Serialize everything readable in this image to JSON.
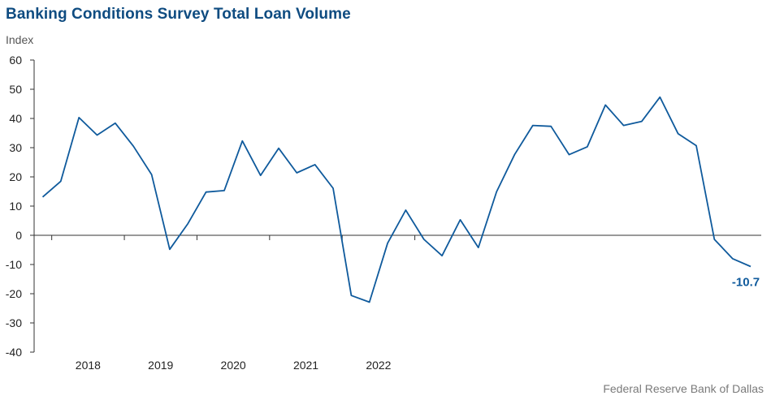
{
  "chart_data": {
    "type": "line",
    "title": "Banking Conditions Survey Total Loan Volume",
    "ylabel": "Index",
    "xlabel": "",
    "ylim": [
      -40,
      60
    ],
    "yticks": [
      60,
      50,
      40,
      30,
      20,
      10,
      0,
      -10,
      -20,
      -30,
      -40
    ],
    "xticks": [
      "2018",
      "2019",
      "2020",
      "2021",
      "2022"
    ],
    "grid": false,
    "line_color": "#0f5a9c",
    "series": [
      {
        "values": [
          13.1,
          18.5,
          40.3,
          34.3,
          38.4,
          30.5,
          20.8,
          -4.8,
          4.0,
          14.8,
          15.3,
          32.3,
          20.5,
          29.8,
          21.4,
          24.2,
          16.1,
          -20.6,
          -22.9,
          -2.7,
          8.6,
          -1.4,
          -7.0,
          5.3,
          -4.2,
          14.9,
          27.7,
          37.6,
          37.3,
          27.6,
          30.3,
          44.6,
          37.6,
          39.0,
          47.3,
          34.8,
          30.7,
          -1.4,
          -8.0,
          -10.7
        ]
      }
    ],
    "end_label": "-10.7"
  },
  "source": "Federal Reserve Bank of Dallas"
}
